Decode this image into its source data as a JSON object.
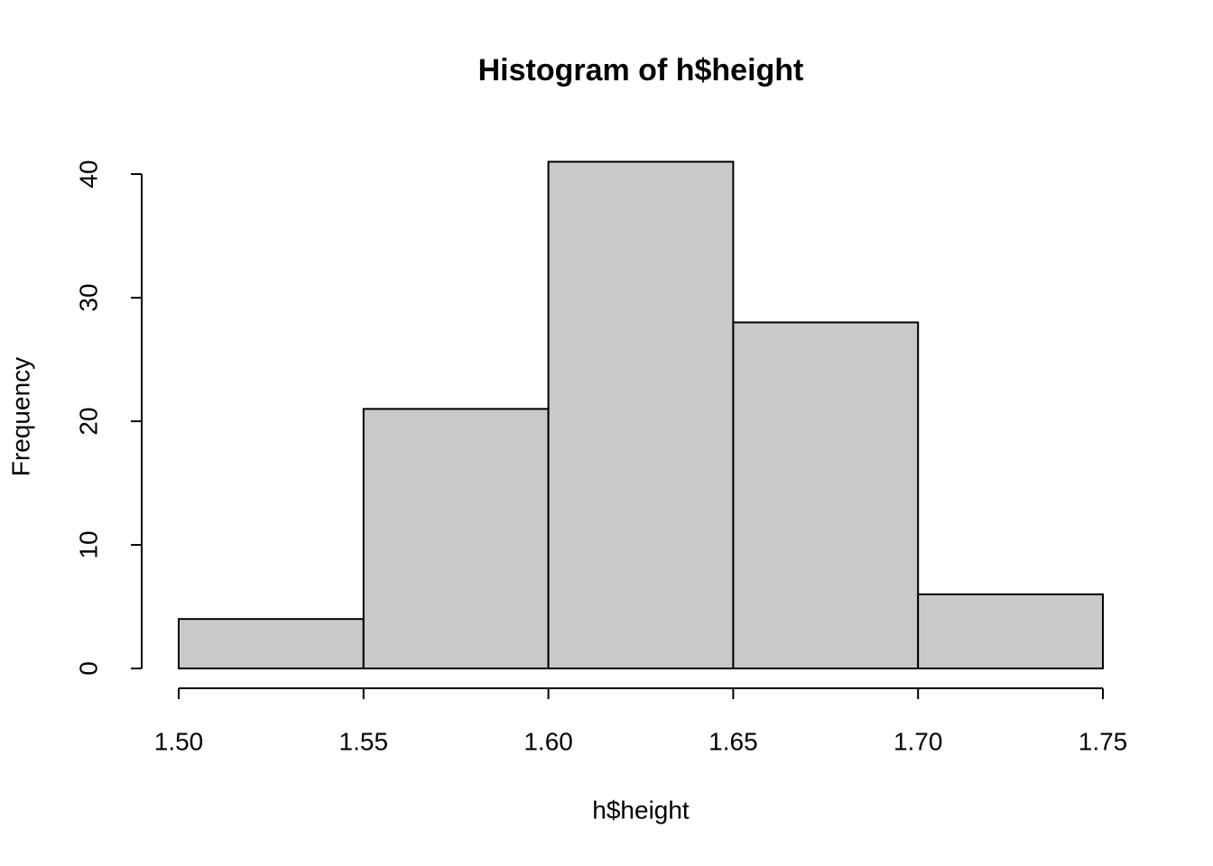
{
  "chart_data": {
    "type": "histogram",
    "title": "Histogram of h$height",
    "x_label": "h$height",
    "y_label": "Frequency",
    "bins": [
      1.5,
      1.55,
      1.6,
      1.65,
      1.7,
      1.75
    ],
    "values": [
      4,
      21,
      41,
      28,
      6
    ],
    "color": "#c9c9c9",
    "xlim": [
      1.5,
      1.75
    ],
    "xticks": [
      {
        "value": 1.5,
        "label": "1.50"
      },
      {
        "value": 1.55,
        "label": "1.55"
      },
      {
        "value": 1.6,
        "label": "1.60"
      },
      {
        "value": 1.65,
        "label": "1.65"
      },
      {
        "value": 1.7,
        "label": "1.70"
      },
      {
        "value": 1.75,
        "label": "1.75"
      }
    ],
    "ylim": [
      0,
      40
    ],
    "yticks": [
      0,
      10,
      20,
      30,
      40
    ]
  }
}
